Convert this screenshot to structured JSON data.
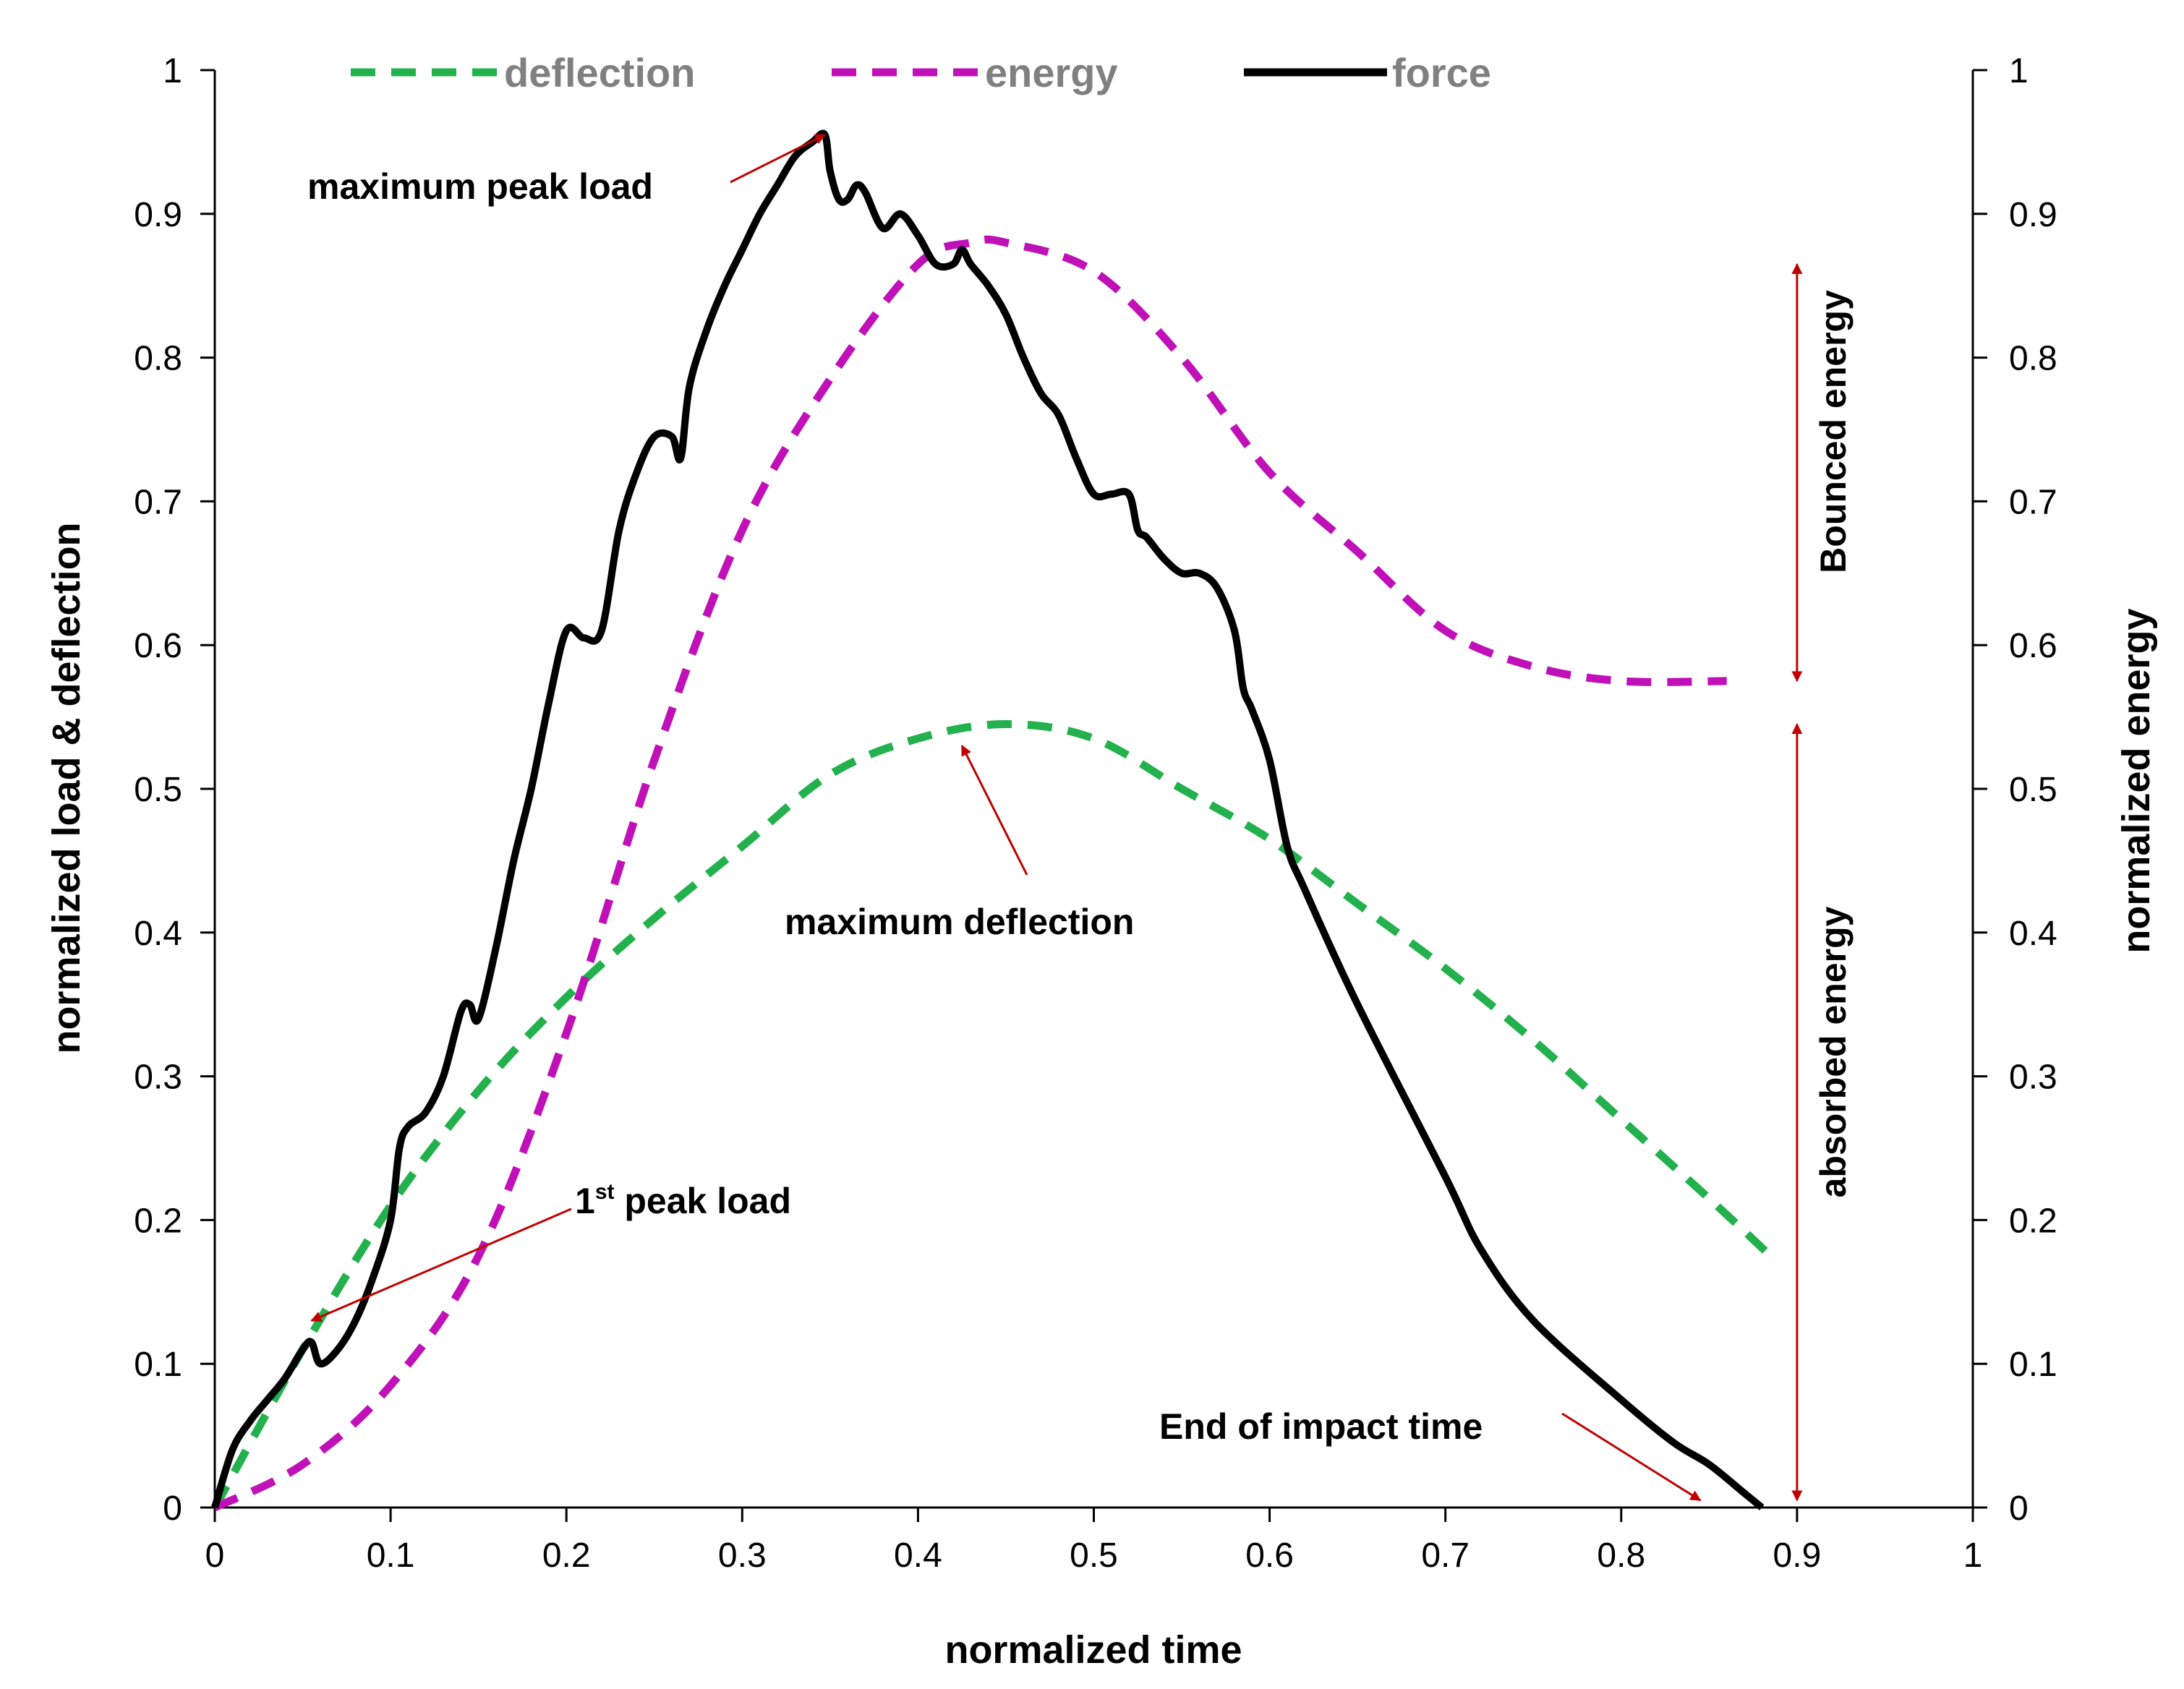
{
  "chart_data": {
    "type": "line",
    "title": "",
    "xlabel": "normalized time",
    "ylabel": "normalized load & deflection",
    "y2label": "normalized energy",
    "xlim": [
      0,
      1
    ],
    "ylim": [
      0,
      1
    ],
    "y2lim": [
      0,
      1
    ],
    "xticks": [
      "0",
      "0.1",
      "0.2",
      "0.3",
      "0.4",
      "0.5",
      "0.6",
      "0.7",
      "0.8",
      "0.9",
      "1"
    ],
    "yticks": [
      "0",
      "0.1",
      "0.2",
      "0.3",
      "0.4",
      "0.5",
      "0.6",
      "0.7",
      "0.8",
      "0.9",
      "1"
    ],
    "y2ticks": [
      "0",
      "0.1",
      "0.2",
      "0.3",
      "0.4",
      "0.5",
      "0.6",
      "0.7",
      "0.8",
      "0.9",
      "1"
    ],
    "legend_position": "top",
    "series": [
      {
        "name": "deflection",
        "style": "dashed",
        "color": "#22b14c",
        "axis": "left",
        "x": [
          0,
          0.05,
          0.1,
          0.15,
          0.2,
          0.25,
          0.3,
          0.35,
          0.4,
          0.45,
          0.5,
          0.55,
          0.6,
          0.65,
          0.7,
          0.75,
          0.8,
          0.85,
          0.885
        ],
        "y": [
          0,
          0.11,
          0.21,
          0.29,
          0.355,
          0.41,
          0.46,
          0.51,
          0.535,
          0.545,
          0.535,
          0.5,
          0.465,
          0.42,
          0.375,
          0.325,
          0.27,
          0.215,
          0.175
        ]
      },
      {
        "name": "energy",
        "style": "dashed",
        "color": "#c010b8",
        "axis": "right",
        "x": [
          0,
          0.05,
          0.1,
          0.15,
          0.2,
          0.25,
          0.3,
          0.35,
          0.4,
          0.43,
          0.45,
          0.5,
          0.55,
          0.6,
          0.65,
          0.7,
          0.75,
          0.8,
          0.86
        ],
        "y": [
          0,
          0.03,
          0.085,
          0.175,
          0.33,
          0.52,
          0.68,
          0.785,
          0.865,
          0.88,
          0.88,
          0.86,
          0.8,
          0.72,
          0.665,
          0.61,
          0.585,
          0.575,
          0.575
        ]
      },
      {
        "name": "force",
        "style": "solid",
        "color": "#000000",
        "axis": "left",
        "x": [
          0,
          0.01,
          0.02,
          0.03,
          0.04,
          0.05,
          0.055,
          0.06,
          0.07,
          0.08,
          0.09,
          0.1,
          0.105,
          0.11,
          0.12,
          0.13,
          0.14,
          0.145,
          0.15,
          0.16,
          0.17,
          0.18,
          0.19,
          0.2,
          0.21,
          0.22,
          0.23,
          0.24,
          0.25,
          0.26,
          0.265,
          0.27,
          0.28,
          0.29,
          0.3,
          0.31,
          0.32,
          0.33,
          0.34,
          0.347,
          0.35,
          0.355,
          0.36,
          0.365,
          0.37,
          0.38,
          0.39,
          0.4,
          0.41,
          0.42,
          0.425,
          0.43,
          0.44,
          0.45,
          0.46,
          0.47,
          0.48,
          0.49,
          0.5,
          0.51,
          0.52,
          0.525,
          0.53,
          0.54,
          0.55,
          0.56,
          0.57,
          0.58,
          0.585,
          0.59,
          0.6,
          0.61,
          0.62,
          0.65,
          0.7,
          0.72,
          0.75,
          0.8,
          0.83,
          0.85,
          0.87,
          0.88
        ],
        "y": [
          0,
          0.04,
          0.06,
          0.075,
          0.09,
          0.11,
          0.115,
          0.1,
          0.11,
          0.13,
          0.16,
          0.2,
          0.25,
          0.265,
          0.275,
          0.3,
          0.345,
          0.35,
          0.34,
          0.39,
          0.45,
          0.5,
          0.56,
          0.61,
          0.605,
          0.61,
          0.68,
          0.72,
          0.745,
          0.745,
          0.73,
          0.78,
          0.82,
          0.85,
          0.875,
          0.9,
          0.92,
          0.94,
          0.95,
          0.955,
          0.93,
          0.91,
          0.91,
          0.92,
          0.915,
          0.89,
          0.9,
          0.885,
          0.865,
          0.865,
          0.875,
          0.865,
          0.85,
          0.83,
          0.8,
          0.775,
          0.76,
          0.73,
          0.705,
          0.705,
          0.705,
          0.68,
          0.675,
          0.66,
          0.65,
          0.65,
          0.64,
          0.61,
          0.57,
          0.555,
          0.52,
          0.46,
          0.43,
          0.35,
          0.23,
          0.18,
          0.13,
          0.075,
          0.045,
          0.03,
          0.01,
          0
        ]
      }
    ],
    "annotations": [
      {
        "text": "maximum peak load",
        "target": [
          0.347,
          0.955
        ]
      },
      {
        "text_main": "1",
        "text_sup": "st",
        "text_rest": " peak load",
        "target": [
          0.055,
          0.13
        ]
      },
      {
        "text": "maximum deflection",
        "target": [
          0.425,
          0.53
        ]
      },
      {
        "text": "End of impact time",
        "target": [
          0.845,
          0.005
        ]
      }
    ],
    "range_markers": [
      {
        "label": "Bounced energy",
        "x": 0.9,
        "from": 0.575,
        "to": 0.865
      },
      {
        "label": "absorbed energy",
        "x": 0.9,
        "from": 0.005,
        "to": 0.545
      }
    ]
  }
}
